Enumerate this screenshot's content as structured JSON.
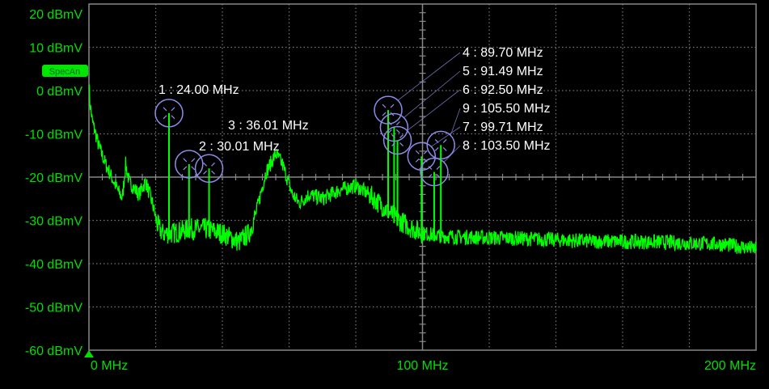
{
  "chart_data": {
    "type": "line",
    "title": "",
    "xlabel": "",
    "ylabel": "",
    "xlim": [
      0,
      200
    ],
    "ylim": [
      -60,
      20
    ],
    "grid": true,
    "x_unit": "MHz",
    "y_unit": "dBmV",
    "y_ticks": [
      "20 dBmV",
      "10 dBmV",
      "0 dBmV",
      "-10 dBmV",
      "-20 dBmV",
      "-30 dBmV",
      "-40 dBmV",
      "-50 dBmV",
      "-60 dBmV"
    ],
    "y_tick_values": [
      20,
      10,
      0,
      -10,
      -20,
      -30,
      -40,
      -50,
      -60
    ],
    "x_ticks": [
      "0 MHz",
      "100 MHz",
      "200 MHz"
    ],
    "x_tick_values": [
      0,
      100,
      200
    ],
    "trace_label": "SpecAn",
    "trace_color": "#00ff00",
    "marker_color": "#8c8ce8",
    "series": [
      {
        "x": [
          0,
          0.3,
          1,
          3,
          5,
          8,
          10,
          11,
          12,
          15,
          17,
          19,
          20.5,
          22,
          25,
          30,
          35,
          40,
          45,
          48,
          50,
          53,
          56,
          58,
          61,
          63,
          66,
          70,
          75,
          80,
          84,
          88,
          92,
          96,
          100,
          106,
          110,
          130,
          150,
          170,
          190,
          200
        ],
        "y": [
          2,
          -3,
          -7,
          -13,
          -17,
          -22,
          -25,
          -17,
          -21,
          -24,
          -21,
          -26,
          -31,
          -33,
          -33,
          -32,
          -32,
          -33,
          -35,
          -33,
          -28.6,
          -19,
          -14.6,
          -17,
          -24,
          -26,
          -24,
          -25,
          -23,
          -22,
          -24,
          -26.7,
          -29.5,
          -31.4,
          -33,
          -33.6,
          -33.8,
          -34.2,
          -34.8,
          -35,
          -35.5,
          -36.6
        ]
      }
    ],
    "markers": [
      {
        "id": "1",
        "label": "1 : 24.00 MHz",
        "freq": 24.0,
        "level": -5.2
      },
      {
        "id": "2",
        "label": "2 : 30.01 MHz",
        "freq": 30.01,
        "level": -17
      },
      {
        "id": "3",
        "label": "3 : 36.01 MHz",
        "freq": 36.01,
        "level": -18
      },
      {
        "id": "4",
        "label": "4 : 89.70 MHz",
        "freq": 89.7,
        "level": -4.5
      },
      {
        "id": "5",
        "label": "5 : 91.49 MHz",
        "freq": 91.49,
        "level": -8.5
      },
      {
        "id": "6",
        "label": "6 : 92.50 MHz",
        "freq": 92.5,
        "level": -11.5
      },
      {
        "id": "7",
        "label": "7 : 99.71 MHz",
        "freq": 99.71,
        "level": -15.2
      },
      {
        "id": "8",
        "label": "8 : 103.50 MHz",
        "freq": 103.5,
        "level": -18.8
      },
      {
        "id": "9",
        "label": "9 : 105.50 MHz",
        "freq": 105.5,
        "level": -12.6
      }
    ]
  }
}
